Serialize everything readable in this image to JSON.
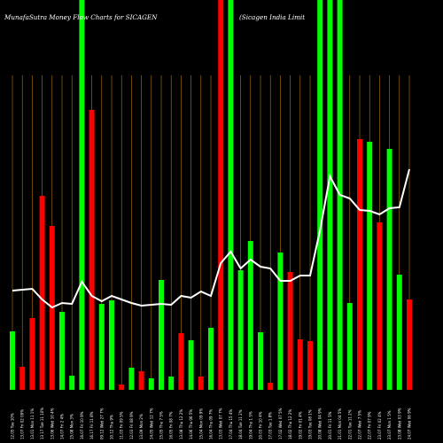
{
  "chart_data": {
    "type": "bar",
    "title": "MunafaSutra  Money Flow  Charts for SICAGEN",
    "subtitle": "(Sicagen  India  Limit",
    "colors": {
      "background": "#000000",
      "up": "#00ff00",
      "down": "#ff0000",
      "line": "#ffffff",
      "grid": "#b8760f"
    },
    "ylim": [
      0,
      440
    ],
    "line_ylim": [
      0,
      440
    ],
    "grid": true,
    "categories": [
      "12.05 Tue 10%",
      "13.07 Fri 02 09%",
      "13.01 Mon 11 1%",
      "13 17 Tue 11 10%",
      "13.06 Wed 10 4%",
      "14.07 Fri 2 4%",
      "15.08 Mon 3%",
      "16.07 Fri 10 9%",
      "16.17 Fri 11 8%",
      "09.12 Wed 27 7%",
      "10.12 Thu 9%",
      "11.03 Fri 09 5%",
      "12.03 Fri 08 9%",
      "13.09 Mon 2%",
      "14.05 Wed 12 7%",
      "15.05 Thu 7 5%",
      "16.05 Fri 08 7%",
      "13.08 Thu 12 2%",
      "14.06 Thu 06 5%",
      "15.04 Mon 09 9%",
      "16.04 Thu 09 7%",
      "13.03 Wed 07 7%",
      "17.04 Thu 15 4%",
      "18.04 Tue 11 2%",
      "19.04 Thu 1 5%",
      "20.03 Fri 10 4%",
      "17.03 Tue 1 8%",
      "17.02 Wed 07 5%",
      "18.02 Thu 12 2%",
      "19.02 Fri 01 4%",
      "19.03 Tue 08 1%",
      "20.08 Wed 04 9%",
      "20.01 Fri 11 5%",
      "21.01 Mon 04 5%",
      "22.01 Tue 11 2%",
      "22.07 Wed 7 5%",
      "22.07 Fri 07 9%",
      "23.07 Fri 02 4%",
      "23.07 Mon 1 5%",
      "23.08 Wed 03 9%",
      "24.07 Wed 06 9%"
    ],
    "bar_colors": [
      "up",
      "down",
      "down",
      "down",
      "down",
      "up",
      "up",
      "up",
      "down",
      "up",
      "up",
      "down",
      "up",
      "down",
      "up",
      "up",
      "up",
      "down",
      "up",
      "down",
      "up",
      "down",
      "up",
      "up",
      "up",
      "up",
      "down",
      "up",
      "down",
      "down",
      "down",
      "up",
      "up",
      "up",
      "up",
      "down",
      "up",
      "down",
      "up",
      "up",
      "down"
    ],
    "values": [
      66,
      26,
      81,
      219,
      185,
      88,
      16,
      440,
      316,
      97,
      101,
      6,
      25,
      21,
      13,
      124,
      15,
      64,
      56,
      15,
      70,
      440,
      440,
      135,
      168,
      65,
      8,
      155,
      133,
      57,
      55,
      440,
      440,
      440,
      98,
      283,
      280,
      189,
      272,
      130,
      102
    ],
    "line_values": [
      112,
      113,
      114,
      102,
      93,
      98,
      97,
      122,
      106,
      100,
      106,
      102,
      98,
      95,
      96,
      97,
      96,
      106,
      104,
      111,
      106,
      143,
      156,
      137,
      147,
      139,
      137,
      123,
      123,
      129,
      129,
      180,
      241,
      220,
      216,
      203,
      202,
      198,
      205,
      206,
      249
    ]
  }
}
